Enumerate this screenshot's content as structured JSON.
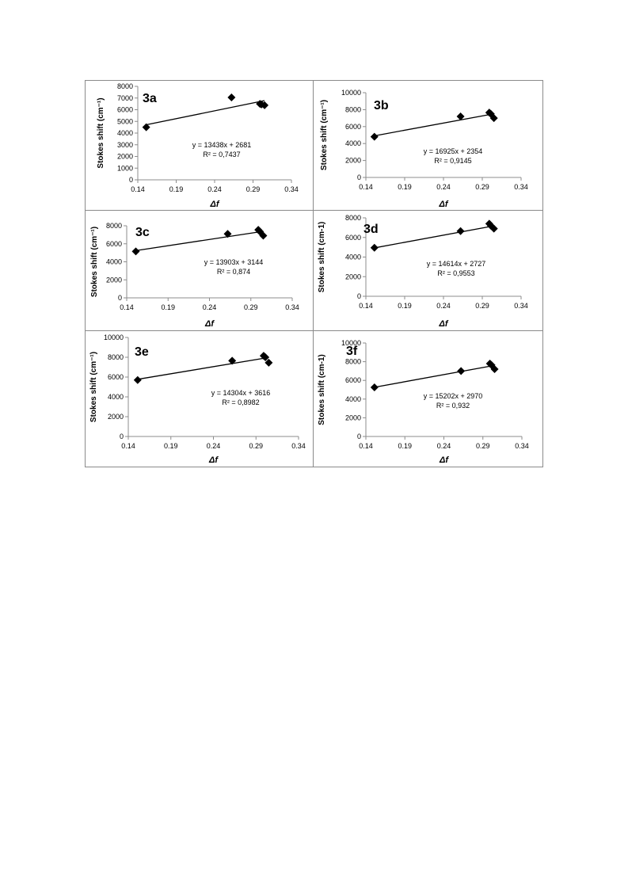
{
  "chart_data": [
    {
      "id": "3a",
      "type": "scatter",
      "panel_label": "3a",
      "xlabel": "Δf",
      "ylabel": "Stokes shift (cm⁻¹)",
      "xlim": [
        0.14,
        0.34
      ],
      "xticks": [
        "0.14",
        "0.19",
        "0.24",
        "0.29",
        "0.34"
      ],
      "ylim": [
        0,
        8000
      ],
      "yticks": [
        "0",
        "1000",
        "2000",
        "3000",
        "4000",
        "5000",
        "6000",
        "7000",
        "8000"
      ],
      "points": [
        {
          "x": 0.151,
          "y": 4500
        },
        {
          "x": 0.262,
          "y": 7050
        },
        {
          "x": 0.299,
          "y": 6500
        },
        {
          "x": 0.301,
          "y": 6450
        },
        {
          "x": 0.305,
          "y": 6380
        }
      ],
      "trendline": {
        "slope": 13438,
        "intercept": 2681
      },
      "equation": "y = 13438x + 2681",
      "r2": "R² = 0,7437"
    },
    {
      "id": "3b",
      "type": "scatter",
      "panel_label": "3b",
      "xlabel": "Δf",
      "ylabel": "Stokes shift (cm⁻¹)",
      "xlim": [
        0.14,
        0.34
      ],
      "xticks": [
        "0.14",
        "0.19",
        "0.24",
        "0.29",
        "0.34"
      ],
      "ylim": [
        0,
        10000
      ],
      "yticks": [
        "0",
        "2000",
        "4000",
        "6000",
        "8000",
        "10000"
      ],
      "points": [
        {
          "x": 0.151,
          "y": 4800
        },
        {
          "x": 0.262,
          "y": 7200
        },
        {
          "x": 0.299,
          "y": 7650
        },
        {
          "x": 0.301,
          "y": 7500
        },
        {
          "x": 0.305,
          "y": 7000
        }
      ],
      "trendline": {
        "slope": 16925,
        "intercept": 2354
      },
      "equation": "y = 16925x + 2354",
      "r2": "R² = 0,9145"
    },
    {
      "id": "3c",
      "type": "scatter",
      "panel_label": "3c",
      "xlabel": "Δf",
      "ylabel": "Stokes shift (cm⁻¹)",
      "xlim": [
        0.14,
        0.34
      ],
      "xticks": [
        "0.14",
        "0.19",
        "0.24",
        "0.29",
        "0.34"
      ],
      "ylim": [
        0,
        8000
      ],
      "yticks": [
        "0",
        "2000",
        "4000",
        "6000",
        "8000"
      ],
      "points": [
        {
          "x": 0.151,
          "y": 5150
        },
        {
          "x": 0.262,
          "y": 7100
        },
        {
          "x": 0.299,
          "y": 7550
        },
        {
          "x": 0.301,
          "y": 7350
        },
        {
          "x": 0.305,
          "y": 6900
        }
      ],
      "trendline": {
        "slope": 13903,
        "intercept": 3144
      },
      "equation": "y = 13903x + 3144",
      "r2": "R² = 0,874"
    },
    {
      "id": "3d",
      "type": "scatter",
      "panel_label": "3d",
      "xlabel": "Δf",
      "ylabel": "Stokes shift (cm-1)",
      "xlim": [
        0.14,
        0.34
      ],
      "xticks": [
        "0.14",
        "0.19",
        "0.24",
        "0.29",
        "0.34"
      ],
      "ylim": [
        0,
        8000
      ],
      "yticks": [
        "0",
        "2000",
        "4000",
        "6000",
        "8000"
      ],
      "points": [
        {
          "x": 0.151,
          "y": 4950
        },
        {
          "x": 0.262,
          "y": 6650
        },
        {
          "x": 0.299,
          "y": 7400
        },
        {
          "x": 0.301,
          "y": 7200
        },
        {
          "x": 0.305,
          "y": 6900
        }
      ],
      "trendline": {
        "slope": 14614,
        "intercept": 2727
      },
      "equation": "y = 14614x + 2727",
      "r2": "R² = 0,9553"
    },
    {
      "id": "3e",
      "type": "scatter",
      "panel_label": "3e",
      "xlabel": "Δf",
      "ylabel": "Stokes shift (cm⁻¹)",
      "xlim": [
        0.14,
        0.34
      ],
      "xticks": [
        "0.14",
        "0.19",
        "0.24",
        "0.29",
        "0.34"
      ],
      "ylim": [
        0,
        10000
      ],
      "yticks": [
        "0",
        "2000",
        "4000",
        "6000",
        "8000",
        "10000"
      ],
      "points": [
        {
          "x": 0.151,
          "y": 5700
        },
        {
          "x": 0.262,
          "y": 7650
        },
        {
          "x": 0.299,
          "y": 8150
        },
        {
          "x": 0.301,
          "y": 8000
        },
        {
          "x": 0.305,
          "y": 7450
        }
      ],
      "trendline": {
        "slope": 14304,
        "intercept": 3616
      },
      "equation": "y = 14304x + 3616",
      "r2": "R² = 0,8982"
    },
    {
      "id": "3f",
      "type": "scatter",
      "panel_label": "3f",
      "xlabel": "Δf",
      "ylabel": "Stokes shift (cm-1)",
      "xlim": [
        0.14,
        0.34
      ],
      "xticks": [
        "0.14",
        "0.19",
        "0.24",
        "0.29",
        "0.34"
      ],
      "ylim": [
        0,
        10000
      ],
      "yticks": [
        "0",
        "2000",
        "4000",
        "6000",
        "8000",
        "10000"
      ],
      "points": [
        {
          "x": 0.151,
          "y": 5250
        },
        {
          "x": 0.262,
          "y": 7000
        },
        {
          "x": 0.299,
          "y": 7800
        },
        {
          "x": 0.301,
          "y": 7650
        },
        {
          "x": 0.305,
          "y": 7200
        }
      ],
      "trendline": {
        "slope": 15202,
        "intercept": 2970
      },
      "equation": "y = 15202x + 2970",
      "r2": "R² = 0,932"
    }
  ],
  "colors": {
    "marker": "#000000",
    "trendline": "#000000",
    "axis": "#8c8c8c",
    "frame": "#8a8a8a",
    "text": "#000000"
  }
}
